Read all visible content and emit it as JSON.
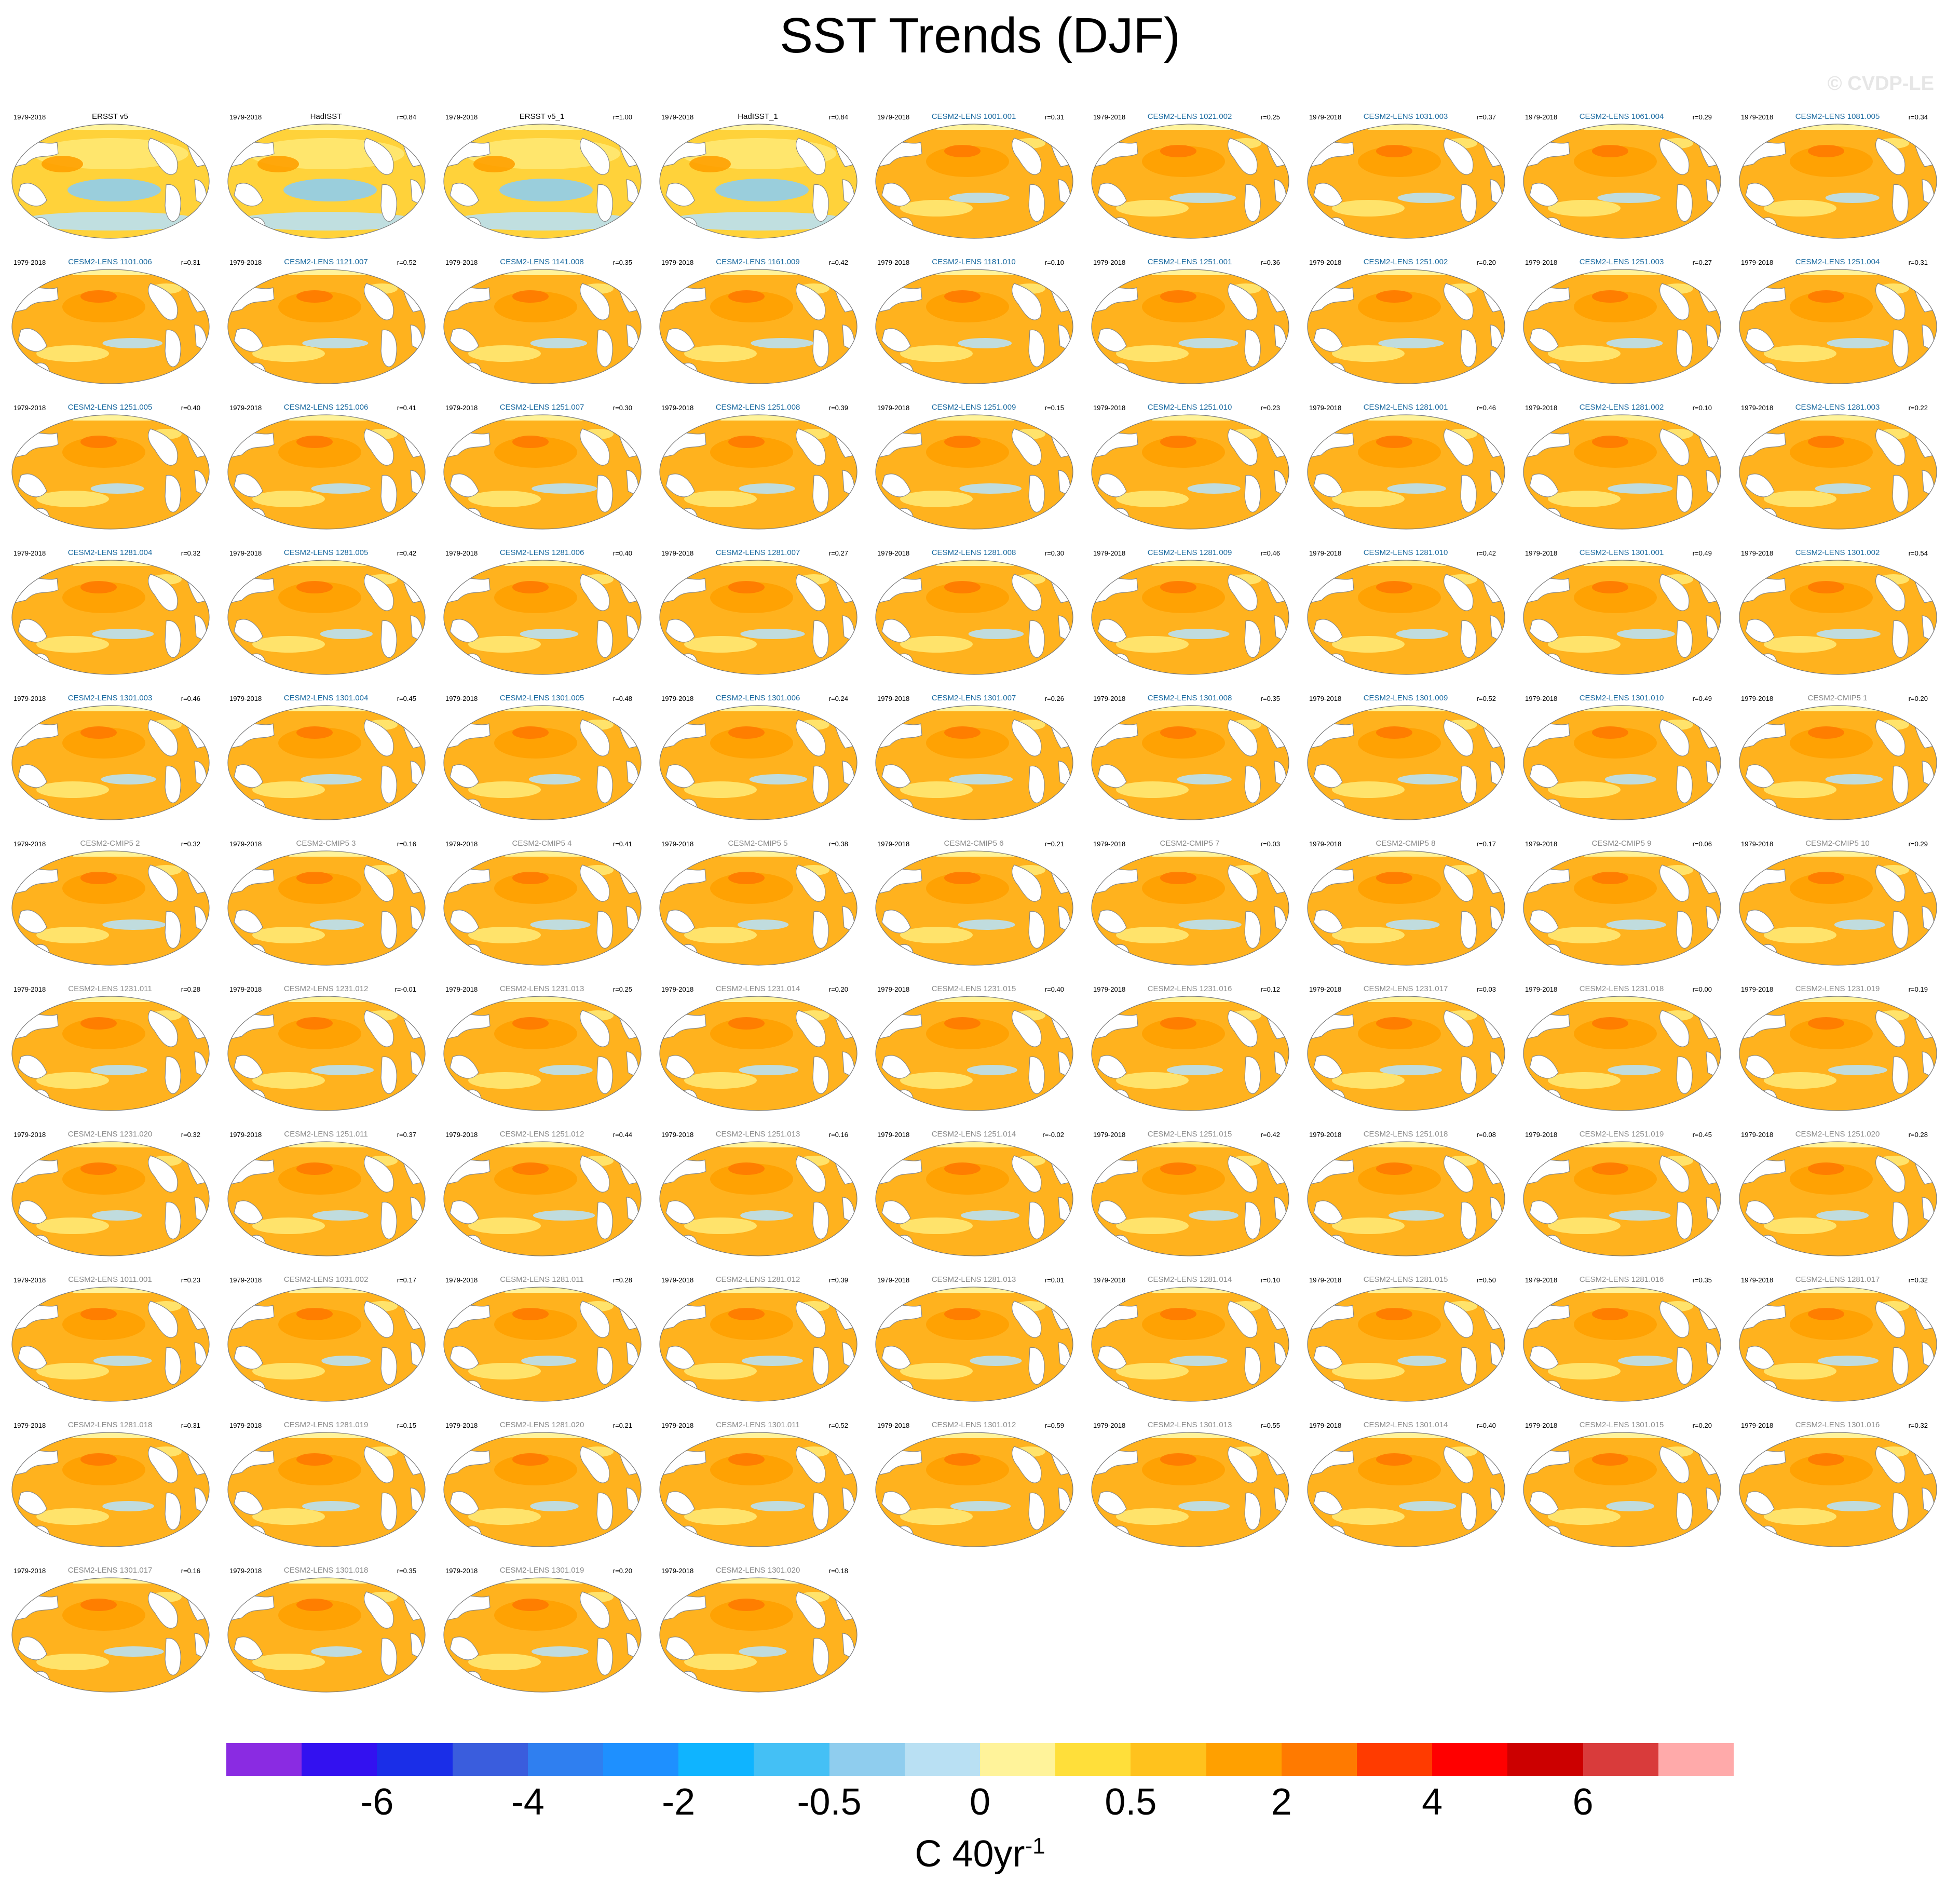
{
  "title": "SST Trends (DJF)",
  "watermark": "© CVDP-LE",
  "period": "1979-2018",
  "panels": [
    {
      "name": "ERSST v5",
      "r": "",
      "kind": "obs"
    },
    {
      "name": "HadISST",
      "r": "r=0.84",
      "kind": "obs"
    },
    {
      "name": "ERSST v5_1",
      "r": "r=1.00",
      "kind": "obs"
    },
    {
      "name": "HadISST_1",
      "r": "r=0.84",
      "kind": "obs"
    },
    {
      "name": "CESM2-LENS 1001.001",
      "r": "r=0.31",
      "kind": "lens"
    },
    {
      "name": "CESM2-LENS 1021.002",
      "r": "r=0.25",
      "kind": "lens"
    },
    {
      "name": "CESM2-LENS 1031.003",
      "r": "r=0.37",
      "kind": "lens"
    },
    {
      "name": "CESM2-LENS 1061.004",
      "r": "r=0.29",
      "kind": "lens"
    },
    {
      "name": "CESM2-LENS 1081.005",
      "r": "r=0.34",
      "kind": "lens"
    },
    {
      "name": "CESM2-LENS 1101.006",
      "r": "r=0.31",
      "kind": "lens"
    },
    {
      "name": "CESM2-LENS 1121.007",
      "r": "r=0.52",
      "kind": "lens"
    },
    {
      "name": "CESM2-LENS 1141.008",
      "r": "r=0.35",
      "kind": "lens"
    },
    {
      "name": "CESM2-LENS 1161.009",
      "r": "r=0.42",
      "kind": "lens"
    },
    {
      "name": "CESM2-LENS 1181.010",
      "r": "r=0.10",
      "kind": "lens"
    },
    {
      "name": "CESM2-LENS 1251.001",
      "r": "r=0.36",
      "kind": "lens"
    },
    {
      "name": "CESM2-LENS 1251.002",
      "r": "r=0.20",
      "kind": "lens"
    },
    {
      "name": "CESM2-LENS 1251.003",
      "r": "r=0.27",
      "kind": "lens"
    },
    {
      "name": "CESM2-LENS 1251.004",
      "r": "r=0.31",
      "kind": "lens"
    },
    {
      "name": "CESM2-LENS 1251.005",
      "r": "r=0.40",
      "kind": "lens"
    },
    {
      "name": "CESM2-LENS 1251.006",
      "r": "r=0.41",
      "kind": "lens"
    },
    {
      "name": "CESM2-LENS 1251.007",
      "r": "r=0.30",
      "kind": "lens"
    },
    {
      "name": "CESM2-LENS 1251.008",
      "r": "r=0.39",
      "kind": "lens"
    },
    {
      "name": "CESM2-LENS 1251.009",
      "r": "r=0.15",
      "kind": "lens"
    },
    {
      "name": "CESM2-LENS 1251.010",
      "r": "r=0.23",
      "kind": "lens"
    },
    {
      "name": "CESM2-LENS 1281.001",
      "r": "r=0.46",
      "kind": "lens"
    },
    {
      "name": "CESM2-LENS 1281.002",
      "r": "r=0.10",
      "kind": "lens"
    },
    {
      "name": "CESM2-LENS 1281.003",
      "r": "r=0.22",
      "kind": "lens"
    },
    {
      "name": "CESM2-LENS 1281.004",
      "r": "r=0.32",
      "kind": "lens"
    },
    {
      "name": "CESM2-LENS 1281.005",
      "r": "r=0.42",
      "kind": "lens"
    },
    {
      "name": "CESM2-LENS 1281.006",
      "r": "r=0.40",
      "kind": "lens"
    },
    {
      "name": "CESM2-LENS 1281.007",
      "r": "r=0.27",
      "kind": "lens"
    },
    {
      "name": "CESM2-LENS 1281.008",
      "r": "r=0.30",
      "kind": "lens"
    },
    {
      "name": "CESM2-LENS 1281.009",
      "r": "r=0.46",
      "kind": "lens"
    },
    {
      "name": "CESM2-LENS 1281.010",
      "r": "r=0.42",
      "kind": "lens"
    },
    {
      "name": "CESM2-LENS 1301.001",
      "r": "r=0.49",
      "kind": "lens"
    },
    {
      "name": "CESM2-LENS 1301.002",
      "r": "r=0.54",
      "kind": "lens"
    },
    {
      "name": "CESM2-LENS 1301.003",
      "r": "r=0.46",
      "kind": "lens"
    },
    {
      "name": "CESM2-LENS 1301.004",
      "r": "r=0.45",
      "kind": "lens"
    },
    {
      "name": "CESM2-LENS 1301.005",
      "r": "r=0.48",
      "kind": "lens"
    },
    {
      "name": "CESM2-LENS 1301.006",
      "r": "r=0.24",
      "kind": "lens"
    },
    {
      "name": "CESM2-LENS 1301.007",
      "r": "r=0.26",
      "kind": "lens"
    },
    {
      "name": "CESM2-LENS 1301.008",
      "r": "r=0.35",
      "kind": "lens"
    },
    {
      "name": "CESM2-LENS 1301.009",
      "r": "r=0.52",
      "kind": "lens"
    },
    {
      "name": "CESM2-LENS 1301.010",
      "r": "r=0.49",
      "kind": "lens"
    },
    {
      "name": "CESM2-CMIP5 1",
      "r": "r=0.20",
      "kind": "grey"
    },
    {
      "name": "CESM2-CMIP5 2",
      "r": "r=0.32",
      "kind": "grey"
    },
    {
      "name": "CESM2-CMIP5 3",
      "r": "r=0.16",
      "kind": "grey"
    },
    {
      "name": "CESM2-CMIP5 4",
      "r": "r=0.41",
      "kind": "grey"
    },
    {
      "name": "CESM2-CMIP5 5",
      "r": "r=0.38",
      "kind": "grey"
    },
    {
      "name": "CESM2-CMIP5 6",
      "r": "r=0.21",
      "kind": "grey"
    },
    {
      "name": "CESM2-CMIP5 7",
      "r": "r=0.03",
      "kind": "grey"
    },
    {
      "name": "CESM2-CMIP5 8",
      "r": "r=0.17",
      "kind": "grey"
    },
    {
      "name": "CESM2-CMIP5 9",
      "r": "r=0.06",
      "kind": "grey"
    },
    {
      "name": "CESM2-CMIP5 10",
      "r": "r=0.29",
      "kind": "grey"
    },
    {
      "name": "CESM2-LENS 1231.011",
      "r": "r=0.28",
      "kind": "grey"
    },
    {
      "name": "CESM2-LENS 1231.012",
      "r": "r=-0.01",
      "kind": "grey"
    },
    {
      "name": "CESM2-LENS 1231.013",
      "r": "r=0.25",
      "kind": "grey"
    },
    {
      "name": "CESM2-LENS 1231.014",
      "r": "r=0.20",
      "kind": "grey"
    },
    {
      "name": "CESM2-LENS 1231.015",
      "r": "r=0.40",
      "kind": "grey"
    },
    {
      "name": "CESM2-LENS 1231.016",
      "r": "r=0.12",
      "kind": "grey"
    },
    {
      "name": "CESM2-LENS 1231.017",
      "r": "r=0.03",
      "kind": "grey"
    },
    {
      "name": "CESM2-LENS 1231.018",
      "r": "r=0.00",
      "kind": "grey"
    },
    {
      "name": "CESM2-LENS 1231.019",
      "r": "r=0.19",
      "kind": "grey"
    },
    {
      "name": "CESM2-LENS 1231.020",
      "r": "r=0.32",
      "kind": "grey"
    },
    {
      "name": "CESM2-LENS 1251.011",
      "r": "r=0.37",
      "kind": "grey"
    },
    {
      "name": "CESM2-LENS 1251.012",
      "r": "r=0.44",
      "kind": "grey"
    },
    {
      "name": "CESM2-LENS 1251.013",
      "r": "r=0.16",
      "kind": "grey"
    },
    {
      "name": "CESM2-LENS 1251.014",
      "r": "r=-0.02",
      "kind": "grey"
    },
    {
      "name": "CESM2-LENS 1251.015",
      "r": "r=0.42",
      "kind": "grey"
    },
    {
      "name": "CESM2-LENS 1251.018",
      "r": "r=0.08",
      "kind": "grey"
    },
    {
      "name": "CESM2-LENS 1251.019",
      "r": "r=0.45",
      "kind": "grey"
    },
    {
      "name": "CESM2-LENS 1251.020",
      "r": "r=0.28",
      "kind": "grey"
    },
    {
      "name": "CESM2-LENS 1011.001",
      "r": "r=0.23",
      "kind": "grey"
    },
    {
      "name": "CESM2-LENS 1031.002",
      "r": "r=0.17",
      "kind": "grey"
    },
    {
      "name": "CESM2-LENS 1281.011",
      "r": "r=0.28",
      "kind": "grey"
    },
    {
      "name": "CESM2-LENS 1281.012",
      "r": "r=0.39",
      "kind": "grey"
    },
    {
      "name": "CESM2-LENS 1281.013",
      "r": "r=0.01",
      "kind": "grey"
    },
    {
      "name": "CESM2-LENS 1281.014",
      "r": "r=0.10",
      "kind": "grey"
    },
    {
      "name": "CESM2-LENS 1281.015",
      "r": "r=0.50",
      "kind": "grey"
    },
    {
      "name": "CESM2-LENS 1281.016",
      "r": "r=0.35",
      "kind": "grey"
    },
    {
      "name": "CESM2-LENS 1281.017",
      "r": "r=0.32",
      "kind": "grey"
    },
    {
      "name": "CESM2-LENS 1281.018",
      "r": "r=0.31",
      "kind": "grey"
    },
    {
      "name": "CESM2-LENS 1281.019",
      "r": "r=0.15",
      "kind": "grey"
    },
    {
      "name": "CESM2-LENS 1281.020",
      "r": "r=0.21",
      "kind": "grey"
    },
    {
      "name": "CESM2-LENS 1301.011",
      "r": "r=0.52",
      "kind": "grey"
    },
    {
      "name": "CESM2-LENS 1301.012",
      "r": "r=0.59",
      "kind": "grey"
    },
    {
      "name": "CESM2-LENS 1301.013",
      "r": "r=0.55",
      "kind": "grey"
    },
    {
      "name": "CESM2-LENS 1301.014",
      "r": "r=0.40",
      "kind": "grey"
    },
    {
      "name": "CESM2-LENS 1301.015",
      "r": "r=0.20",
      "kind": "grey"
    },
    {
      "name": "CESM2-LENS 1301.016",
      "r": "r=0.32",
      "kind": "grey"
    },
    {
      "name": "CESM2-LENS 1301.017",
      "r": "r=0.16",
      "kind": "grey"
    },
    {
      "name": "CESM2-LENS 1301.018",
      "r": "r=0.35",
      "kind": "grey"
    },
    {
      "name": "CESM2-LENS 1301.019",
      "r": "r=0.20",
      "kind": "grey"
    },
    {
      "name": "CESM2-LENS 1301.020",
      "r": "r=0.18",
      "kind": "grey"
    }
  ],
  "colorbar": {
    "colors": [
      "#8a2be2",
      "#3311f0",
      "#1a2ee8",
      "#3a5ddd",
      "#2f7ff0",
      "#1e90ff",
      "#0fb4ff",
      "#44c0f5",
      "#8fcdee",
      "#b9e0f3",
      "#fff39a",
      "#ffdf3a",
      "#ffc21d",
      "#ffa000",
      "#ff7a00",
      "#ff3b00",
      "#ff0000",
      "#cc0000",
      "#d93b3b",
      "#ffaaaa"
    ],
    "tick_labels": [
      "-6",
      "-4",
      "-2",
      "-0.5",
      "0",
      "0.5",
      "2",
      "4",
      "6"
    ],
    "units": "C 40yr",
    "units_exp": "-1"
  }
}
